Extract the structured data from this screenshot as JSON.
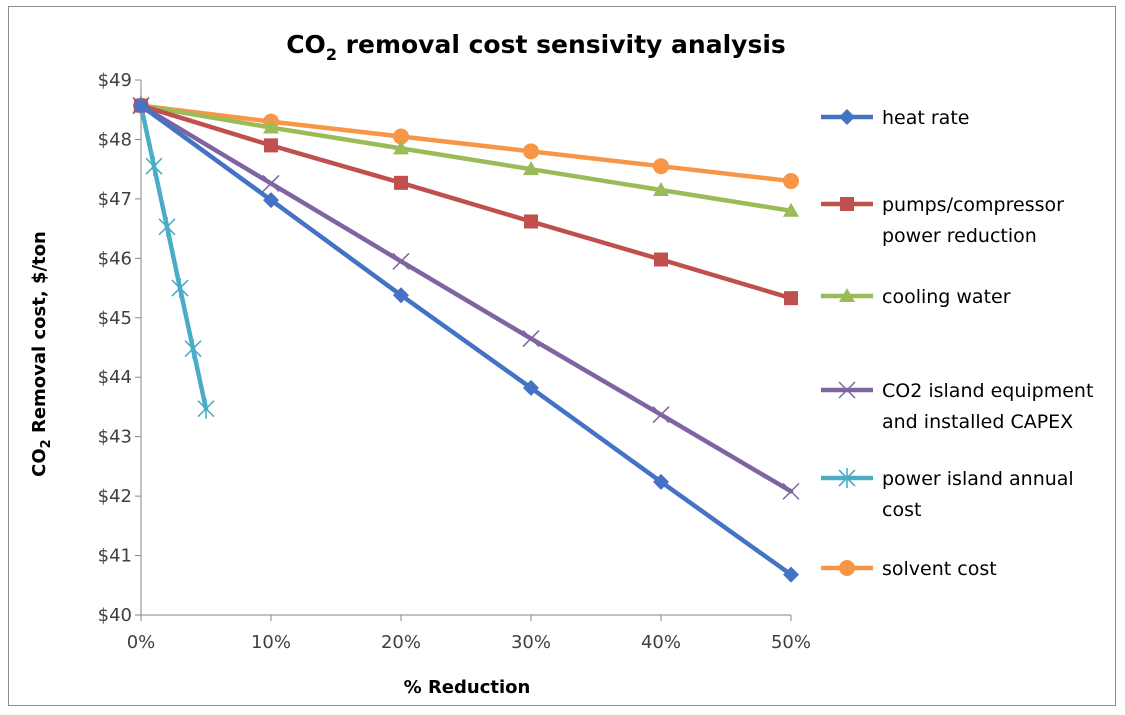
{
  "chart_data": {
    "type": "line",
    "title": {
      "main": "CO",
      "sub": "2",
      "rest": " removal cost sensivity analysis"
    },
    "xlabel": "% Reduction",
    "ylabel": {
      "main": "CO",
      "sub": "2",
      "rest": " Removal cost, $/ton"
    },
    "xlim": [
      0,
      50
    ],
    "ylim": [
      40,
      49
    ],
    "x_ticks": [
      0,
      10,
      20,
      30,
      40,
      50
    ],
    "x_tick_labels": [
      "0%",
      "10%",
      "20%",
      "30%",
      "40%",
      "50%"
    ],
    "y_ticks": [
      40,
      41,
      42,
      43,
      44,
      45,
      46,
      47,
      48,
      49
    ],
    "y_tick_labels": [
      "$40",
      "$41",
      "$42",
      "$43",
      "$44",
      "$45",
      "$46",
      "$47",
      "$48",
      "$49"
    ],
    "grid": false,
    "legend_position": "right",
    "series": [
      {
        "name": "heat rate",
        "color": "#4472c4",
        "marker": "diamond",
        "x": [
          0,
          10,
          20,
          30,
          40,
          50
        ],
        "y": [
          48.57,
          46.98,
          45.38,
          43.82,
          42.24,
          40.68
        ]
      },
      {
        "name": "pumps/compressor power reduction",
        "legend_lines": [
          "pumps/compressor",
          "power reduction"
        ],
        "color": "#c0504d",
        "marker": "square",
        "x": [
          0,
          10,
          20,
          30,
          40,
          50
        ],
        "y": [
          48.57,
          47.9,
          47.27,
          46.62,
          45.98,
          45.33
        ]
      },
      {
        "name": "cooling water",
        "color": "#9bbb59",
        "marker": "triangle",
        "x": [
          0,
          10,
          20,
          30,
          40,
          50
        ],
        "y": [
          48.57,
          48.2,
          47.85,
          47.5,
          47.15,
          46.8
        ]
      },
      {
        "name": "CO2 island equipment and installed CAPEX",
        "legend_lines": [
          "CO2 island equipment",
          "and installed CAPEX"
        ],
        "color": "#8064a2",
        "marker": "x",
        "x": [
          0,
          10,
          20,
          30,
          40,
          50
        ],
        "y": [
          48.57,
          47.26,
          45.95,
          44.65,
          43.37,
          42.08
        ]
      },
      {
        "name": "power island annual cost",
        "legend_lines": [
          "power island annual",
          "cost"
        ],
        "color": "#4bacc6",
        "marker": "star",
        "x": [
          0,
          1,
          2,
          3,
          4,
          5
        ],
        "y": [
          48.57,
          47.55,
          46.53,
          45.5,
          44.48,
          43.47
        ]
      },
      {
        "name": "solvent cost",
        "color": "#f79646",
        "marker": "circle",
        "x": [
          0,
          10,
          20,
          30,
          40,
          50
        ],
        "y": [
          48.57,
          48.3,
          48.05,
          47.8,
          47.55,
          47.3
        ]
      }
    ]
  }
}
